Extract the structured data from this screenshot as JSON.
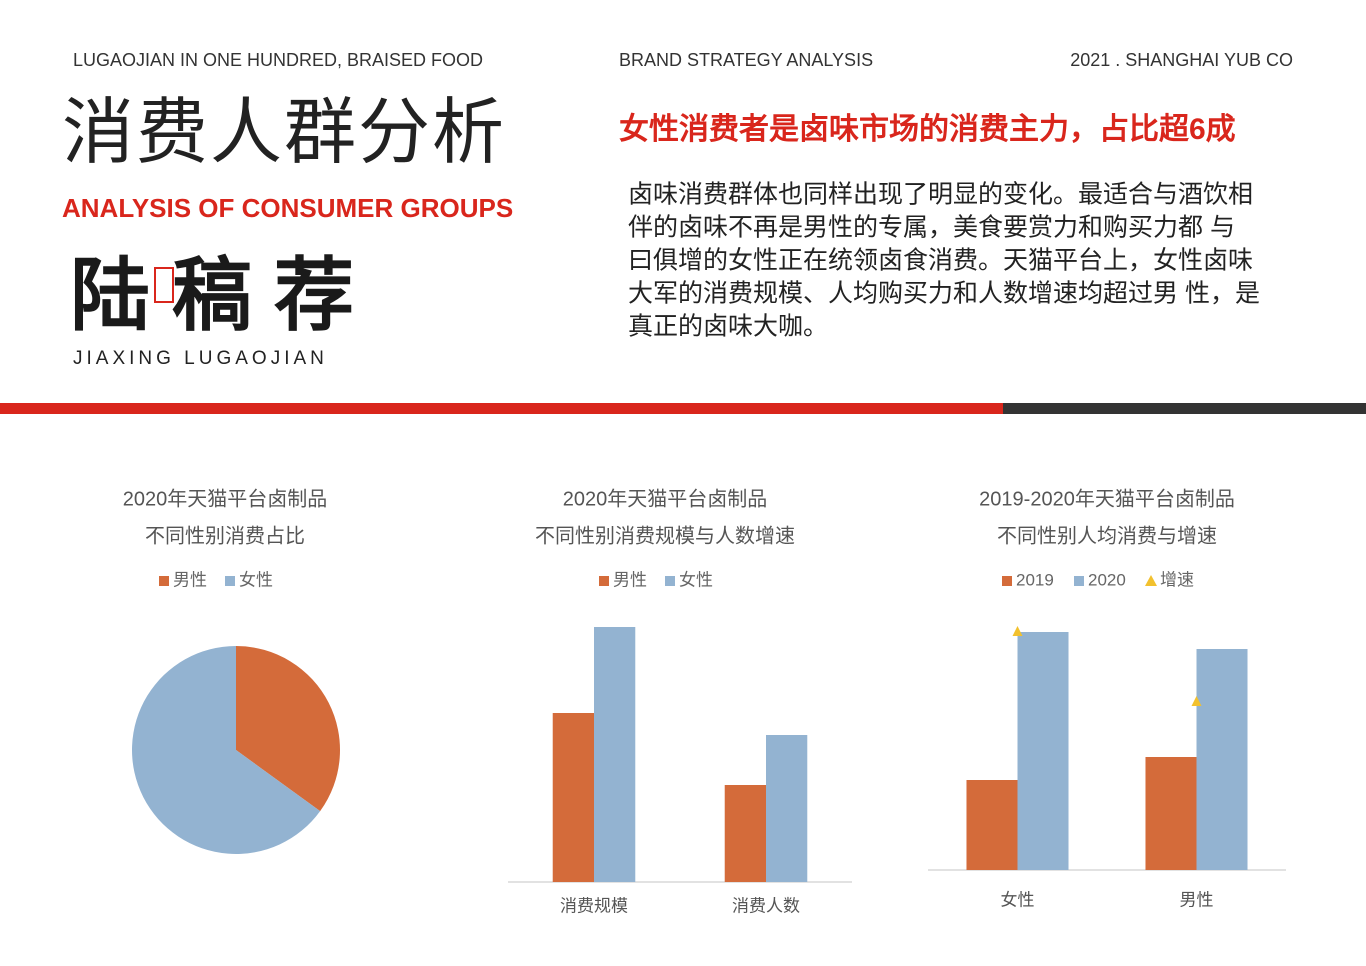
{
  "header": {
    "left": "LUGAOJIAN IN ONE HUNDRED, BRAISED FOOD",
    "center": "BRAND STRATEGY ANALYSIS",
    "right": "2021 . SHANGHAI YUB CO"
  },
  "title": "消费人群分析",
  "subtitle": "ANALYSIS OF CONSUMER GROUPS",
  "brand": {
    "name": "陆稿荐",
    "en": "JIAXING LUGAOJIAN"
  },
  "headline": "女性消费者是卤味市场的消费主力，占比超6成",
  "paragraph": [
    "卤味消费群体也同样出现了明显的变化。最适合与酒饮相",
    "伴的卤味不再是男性的专属，美食要赏力和购买力都 与",
    "曰俱增的女性正在统领卤食消费。天猫平台上，女性卤味",
    "大军的消费规模、人均购买力和人数增速均超过男 性，是",
    "真正的卤味大咖。"
  ],
  "chart_data": [
    {
      "type": "pie",
      "title": "2020年天猫平台卤制品",
      "subtitle": "不同性别消费占比",
      "categories": [
        "男性",
        "女性"
      ],
      "values": [
        35,
        65
      ],
      "colors": [
        "#d46b3a",
        "#93b3d1"
      ]
    },
    {
      "type": "bar",
      "title": "2020年天猫平台卤制品",
      "subtitle": "不同性别消费规模与人数增速",
      "categories": [
        "消费规模",
        "消费人数"
      ],
      "ylim": [
        0,
        300
      ],
      "series": [
        {
          "name": "男性",
          "color": "#d46b3a",
          "values": [
            169,
            97
          ]
        },
        {
          "name": "女性",
          "color": "#93b3d1",
          "values": [
            255,
            147
          ]
        }
      ]
    },
    {
      "type": "bar",
      "title": "2019-2020年天猫平台卤制品",
      "subtitle": "不同性别人均消费与增速",
      "categories": [
        "女性",
        "男性"
      ],
      "ylim": [
        0,
        300
      ],
      "y2lim": [
        0,
        300
      ],
      "series": [
        {
          "name": "2019",
          "color": "#d46b3a",
          "values": [
            90,
            113
          ]
        },
        {
          "name": "2020",
          "color": "#93b3d1",
          "values": [
            238,
            221
          ]
        },
        {
          "name": "增速",
          "color": "#f2c12e",
          "axis": "y2",
          "values": [
            238,
            168
          ]
        }
      ]
    }
  ]
}
